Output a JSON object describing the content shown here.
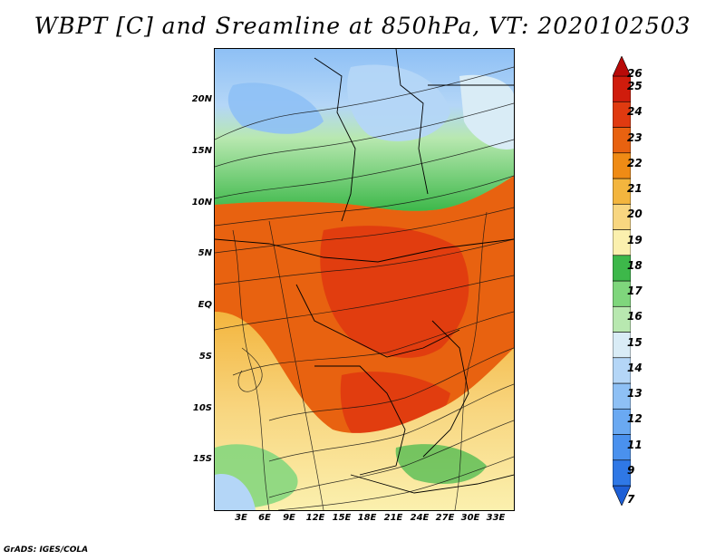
{
  "title": "WBPT [C] and Sreamline at 850hPa, VT: 2020102503",
  "footer": "GrADS: IGES/COLA",
  "lat_ticks": [
    "20N",
    "15N",
    "10N",
    "5N",
    "EQ",
    "5S",
    "10S",
    "15S"
  ],
  "lon_ticks": [
    "3E",
    "6E",
    "9E",
    "12E",
    "15E",
    "18E",
    "21E",
    "24E",
    "27E",
    "30E",
    "33E"
  ],
  "colorbar": {
    "labels": [
      "7",
      "9",
      "11",
      "12",
      "13",
      "14",
      "15",
      "16",
      "17",
      "18",
      "19",
      "20",
      "21",
      "22",
      "23",
      "24",
      "25",
      "26"
    ],
    "colors": [
      "#1e5fd6",
      "#2f78e6",
      "#4a91ee",
      "#6aa9f2",
      "#8ec0f5",
      "#b4d6f7",
      "#d9ecf6",
      "#b8e8b0",
      "#7fd67c",
      "#3db84a",
      "#fbf0ae",
      "#f8d680",
      "#f3b53e",
      "#ef8b15",
      "#e86210",
      "#e03a10",
      "#d01c0c",
      "#b80a08"
    ]
  },
  "map_regions": {
    "north_band": "cool",
    "central_band": "hot",
    "south_band": "warm"
  }
}
